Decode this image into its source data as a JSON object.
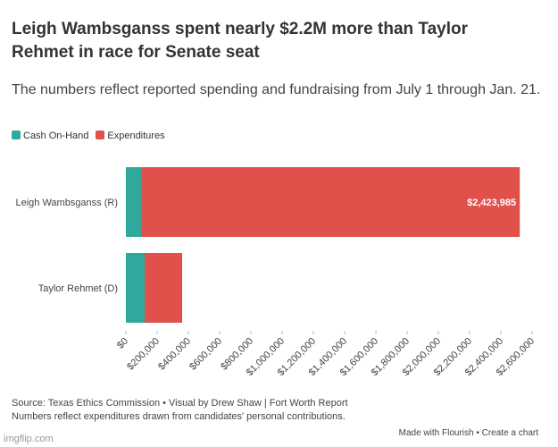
{
  "chart_data": {
    "type": "stacked-bar-horizontal",
    "title": "Leigh Wambsganss spent nearly $2.2M more than Taylor Rehmet in race for Senate seat",
    "subtitle": "The numbers reflect reported spending and fundraising from July 1 through Jan. 21.",
    "categories": [
      "Leigh Wambsganss (R)",
      "Taylor Rehmet (D)"
    ],
    "series": [
      {
        "name": "Cash On-Hand",
        "color": "#2ea99b",
        "values": [
          97000,
          120000
        ]
      },
      {
        "name": "Expenditures",
        "color": "#df514a",
        "values": [
          2423985,
          240000
        ],
        "value_labels": [
          "$2,423,985",
          null
        ]
      }
    ],
    "xlim": [
      0,
      2600000
    ],
    "xticks": [
      {
        "value": 0,
        "label": "$0"
      },
      {
        "value": 200000,
        "label": "$200,000"
      },
      {
        "value": 400000,
        "label": "$400,000"
      },
      {
        "value": 600000,
        "label": "$600,000"
      },
      {
        "value": 800000,
        "label": "$800,000"
      },
      {
        "value": 1000000,
        "label": "$1,000,000"
      },
      {
        "value": 1200000,
        "label": "$1,200,000"
      },
      {
        "value": 1400000,
        "label": "$1,400,000"
      },
      {
        "value": 1600000,
        "label": "$1,600,000"
      },
      {
        "value": 1800000,
        "label": "$1,800,000"
      },
      {
        "value": 2000000,
        "label": "$2,000,000"
      },
      {
        "value": 2200000,
        "label": "$2,200,000"
      },
      {
        "value": 2400000,
        "label": "$2,400,000"
      },
      {
        "value": 2600000,
        "label": "$2,600,000"
      }
    ],
    "grid": false,
    "notes": [
      "Source: Texas Ethics Commission • Visual by Drew Shaw | Fort Worth Report",
      "Numbers reflect expenditures drawn from candidates' personal contributions."
    ],
    "credit": [
      "Made with Flourish",
      "Create a chart"
    ],
    "watermark": "imgflip.com"
  }
}
